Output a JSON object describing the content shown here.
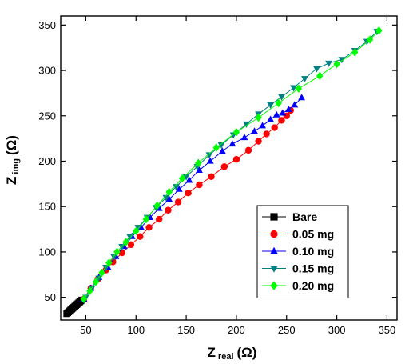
{
  "chart_data": {
    "type": "scatter",
    "xlabel": {
      "main": "Z",
      "sub": "real",
      "unit": "(Ω)"
    },
    "ylabel": {
      "main": "Z",
      "sub": "img",
      "unit": "(Ω)"
    },
    "xlim": [
      25,
      360
    ],
    "ylim": [
      25,
      360
    ],
    "xticks": [
      50,
      100,
      150,
      200,
      250,
      300,
      350
    ],
    "yticks": [
      50,
      100,
      150,
      200,
      250,
      300,
      350
    ],
    "grid": false,
    "legend_position": "bottom-right",
    "series": [
      {
        "name": "Bare",
        "color": "#000000",
        "marker": "square",
        "x": [
          31,
          32,
          33,
          34,
          35,
          36,
          37,
          38,
          39,
          40,
          41,
          42,
          43,
          44,
          45,
          46
        ],
        "y": [
          32,
          33,
          34,
          35,
          36,
          37,
          38,
          39,
          40,
          41,
          42,
          43,
          44,
          45,
          46,
          47
        ]
      },
      {
        "name": "0.05  mg",
        "color": "#ff0000",
        "marker": "circle",
        "x": [
          48,
          55,
          62,
          70,
          77,
          86,
          95,
          104,
          113,
          123,
          132,
          142,
          152,
          163,
          175,
          188,
          200,
          212,
          222,
          230,
          238,
          245,
          250,
          254
        ],
        "y": [
          48,
          60,
          70,
          80,
          89,
          99,
          108,
          117,
          127,
          136,
          146,
          155,
          165,
          174,
          183,
          194,
          202,
          212,
          222,
          230,
          237,
          245,
          250,
          256
        ]
      },
      {
        "name": "0.10  mg",
        "color": "#0000ff",
        "marker": "triangle-up",
        "x": [
          48,
          55,
          63,
          72,
          80,
          88,
          96,
          105,
          114,
          123,
          133,
          143,
          153,
          163,
          174,
          186,
          196,
          208,
          218,
          226,
          234,
          240,
          246,
          252,
          258,
          265
        ],
        "y": [
          48,
          60,
          72,
          83,
          95,
          106,
          117,
          127,
          138,
          148,
          158,
          169,
          179,
          190,
          200,
          211,
          219,
          226,
          233,
          239,
          246,
          251,
          253,
          257,
          262,
          270
        ]
      },
      {
        "name": "0.15  mg",
        "color": "#008080",
        "marker": "triangle-down",
        "x": [
          50,
          56,
          63,
          70,
          78,
          86,
          94,
          102,
          111,
          120,
          130,
          140,
          150,
          161,
          173,
          185,
          197,
          210,
          222,
          234,
          245,
          257,
          268,
          280,
          292,
          305,
          318,
          330,
          340
        ],
        "y": [
          50,
          60,
          71,
          83,
          95,
          106,
          117,
          127,
          138,
          149,
          160,
          172,
          183,
          194,
          207,
          218,
          229,
          241,
          252,
          262,
          271,
          281,
          291,
          302,
          308,
          312,
          322,
          332,
          343
        ]
      },
      {
        "name": "0.20  mg",
        "color": "#00ff00",
        "marker": "diamond",
        "x": [
          48,
          54,
          60,
          66,
          73,
          81,
          90,
          100,
          110,
          121,
          133,
          146,
          162,
          180,
          200,
          222,
          242,
          262,
          283,
          300,
          318,
          333,
          342
        ],
        "y": [
          48,
          57,
          67,
          77,
          88,
          100,
          111,
          123,
          136,
          151,
          166,
          181,
          198,
          215,
          232,
          248,
          264,
          280,
          294,
          307,
          320,
          334,
          344
        ]
      }
    ]
  }
}
